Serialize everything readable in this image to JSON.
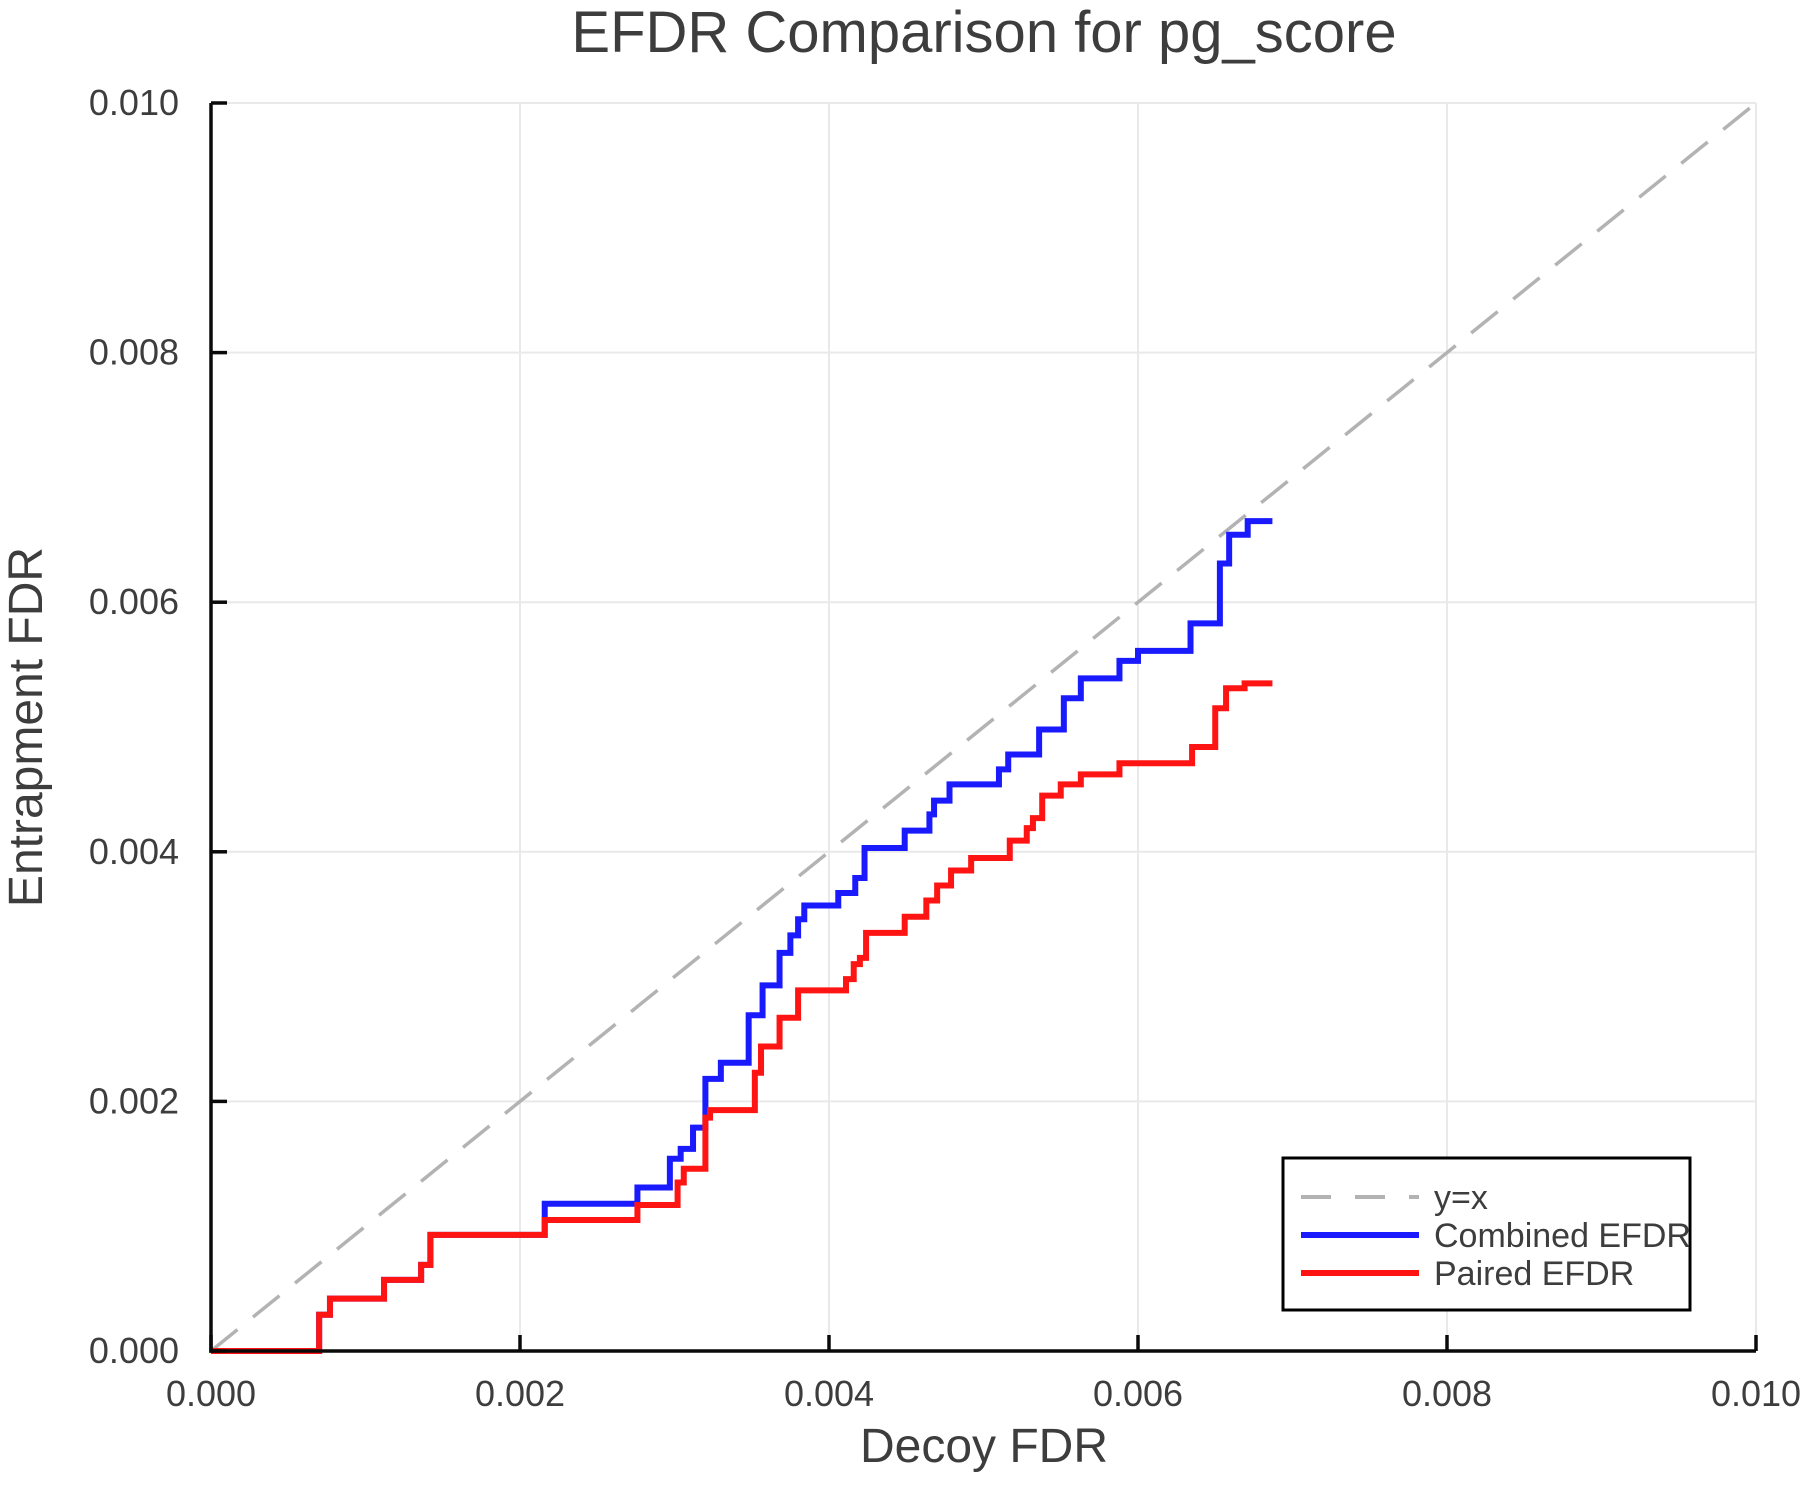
{
  "chart_data": {
    "type": "line",
    "line_style": "step-post",
    "title": "EFDR Comparison for pg_score",
    "xlabel": "Decoy FDR",
    "ylabel": "Entrapment FDR",
    "xlim": [
      0.0,
      0.01
    ],
    "ylim": [
      0.0,
      0.01
    ],
    "grid": true,
    "x_ticks": {
      "values": [
        0.0,
        0.002,
        0.004,
        0.006,
        0.008,
        0.01
      ],
      "labels": [
        "0.000",
        "0.002",
        "0.004",
        "0.006",
        "0.008",
        "0.010"
      ]
    },
    "y_ticks": {
      "values": [
        0.0,
        0.002,
        0.004,
        0.006,
        0.008,
        0.01
      ],
      "labels": [
        "0.000",
        "0.002",
        "0.004",
        "0.006",
        "0.008",
        "0.010"
      ]
    },
    "reference_line": {
      "label": "y=x",
      "from": [
        0.0,
        0.0
      ],
      "to": [
        0.01,
        0.01
      ],
      "style": "dashed",
      "color": "#b3b3b3"
    },
    "series": [
      {
        "name": "Combined EFDR",
        "color": "#1a1aff",
        "end_x": 0.00687,
        "points": [
          [
            0.0,
            0.0
          ],
          [
            0.0007,
            0.00029
          ],
          [
            0.00077,
            0.00042
          ],
          [
            0.00112,
            0.00057
          ],
          [
            0.00136,
            0.00069
          ],
          [
            0.00142,
            0.00093
          ],
          [
            0.00216,
            0.00118
          ],
          [
            0.00276,
            0.00131
          ],
          [
            0.00297,
            0.00154
          ],
          [
            0.00304,
            0.00162
          ],
          [
            0.00312,
            0.00179
          ],
          [
            0.0032,
            0.00218
          ],
          [
            0.0033,
            0.00231
          ],
          [
            0.00348,
            0.00269
          ],
          [
            0.00357,
            0.00293
          ],
          [
            0.00368,
            0.00319
          ],
          [
            0.00375,
            0.00333
          ],
          [
            0.0038,
            0.00346
          ],
          [
            0.00384,
            0.00357
          ],
          [
            0.00406,
            0.00367
          ],
          [
            0.00417,
            0.00379
          ],
          [
            0.00423,
            0.00403
          ],
          [
            0.00449,
            0.00417
          ],
          [
            0.00465,
            0.0043
          ],
          [
            0.00468,
            0.00441
          ],
          [
            0.00478,
            0.00454
          ],
          [
            0.0051,
            0.00466
          ],
          [
            0.00516,
            0.00478
          ],
          [
            0.00536,
            0.00498
          ],
          [
            0.00552,
            0.00523
          ],
          [
            0.00563,
            0.00539
          ],
          [
            0.00588,
            0.00553
          ],
          [
            0.006,
            0.00561
          ],
          [
            0.00634,
            0.00583
          ],
          [
            0.00653,
            0.00631
          ],
          [
            0.00659,
            0.00654
          ],
          [
            0.00671,
            0.00665
          ]
        ]
      },
      {
        "name": "Paired EFDR",
        "color": "#ff1414",
        "end_x": 0.00687,
        "points": [
          [
            0.0,
            0.0
          ],
          [
            0.0007,
            0.00029
          ],
          [
            0.00077,
            0.00042
          ],
          [
            0.00112,
            0.00057
          ],
          [
            0.00136,
            0.00069
          ],
          [
            0.00142,
            0.00093
          ],
          [
            0.00216,
            0.00105
          ],
          [
            0.00276,
            0.00117
          ],
          [
            0.00302,
            0.00135
          ],
          [
            0.00306,
            0.00146
          ],
          [
            0.0032,
            0.00187
          ],
          [
            0.00323,
            0.00193
          ],
          [
            0.00352,
            0.00223
          ],
          [
            0.00356,
            0.00244
          ],
          [
            0.00368,
            0.00267
          ],
          [
            0.0038,
            0.00289
          ],
          [
            0.00411,
            0.00298
          ],
          [
            0.00416,
            0.0031
          ],
          [
            0.0042,
            0.00315
          ],
          [
            0.00424,
            0.00335
          ],
          [
            0.00449,
            0.00348
          ],
          [
            0.00463,
            0.00361
          ],
          [
            0.0047,
            0.00373
          ],
          [
            0.00479,
            0.00385
          ],
          [
            0.00492,
            0.00395
          ],
          [
            0.00517,
            0.00409
          ],
          [
            0.00528,
            0.00419
          ],
          [
            0.00532,
            0.00427
          ],
          [
            0.00538,
            0.00445
          ],
          [
            0.0055,
            0.00454
          ],
          [
            0.00563,
            0.00462
          ],
          [
            0.00588,
            0.00471
          ],
          [
            0.00635,
            0.00484
          ],
          [
            0.0065,
            0.00515
          ],
          [
            0.00657,
            0.00531
          ],
          [
            0.00669,
            0.00535
          ]
        ]
      }
    ],
    "legend": {
      "position": "lower right",
      "entries": [
        {
          "label": "y=x",
          "style": "dashed",
          "color": "#b3b3b3"
        },
        {
          "label": "Combined EFDR",
          "style": "solid",
          "color": "#1a1aff"
        },
        {
          "label": "Paired EFDR",
          "style": "solid",
          "color": "#ff1414"
        }
      ]
    },
    "colors": {
      "background": "#ffffff",
      "gridline": "#e9e9e9",
      "spine": "#0a0a0a",
      "text": "#3d3d3d",
      "legend_border": "#000000"
    }
  }
}
